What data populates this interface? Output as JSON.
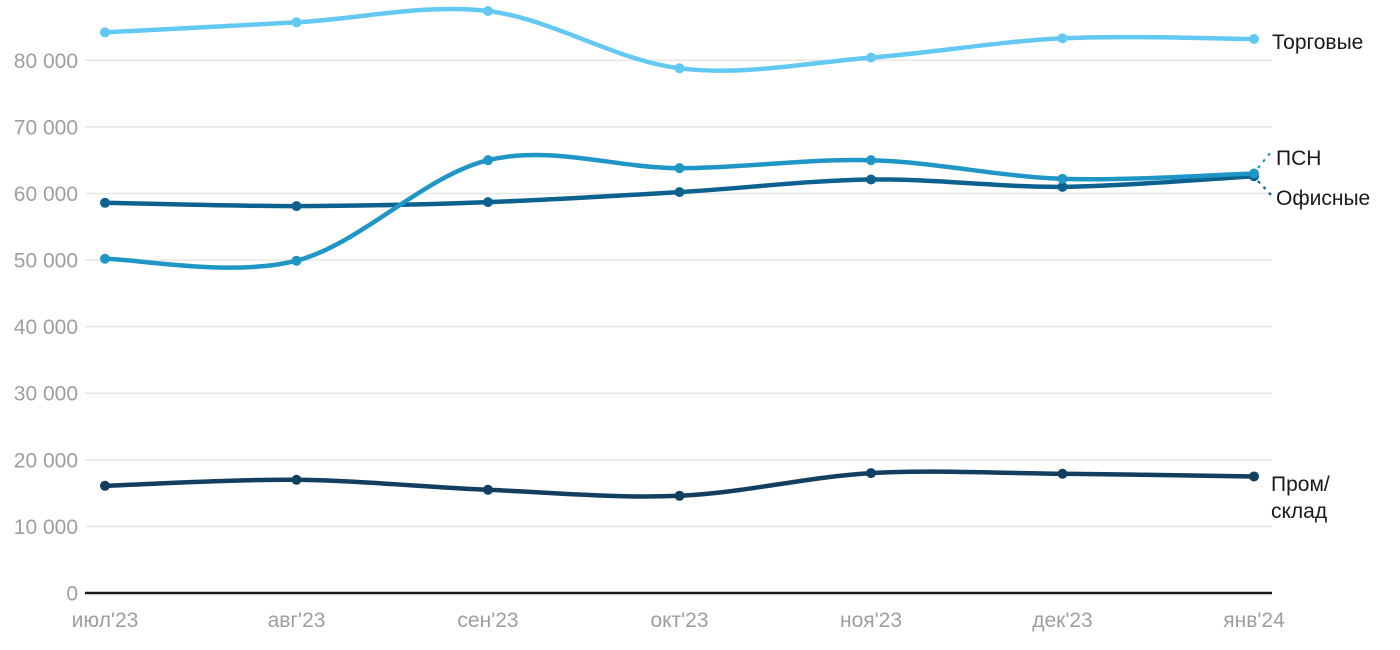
{
  "chart_data": {
    "type": "line",
    "title": "",
    "xlabel": "",
    "ylabel": "",
    "grid": "horizontal-only",
    "legend_position": "labels-at-right-edge-of-lines",
    "x_categories": [
      "июл'23",
      "авг'23",
      "сен'23",
      "окт'23",
      "ноя'23",
      "дек'23",
      "янв'24"
    ],
    "y_ticks": [
      0,
      10000,
      20000,
      30000,
      40000,
      50000,
      60000,
      70000,
      80000
    ],
    "y_tick_labels": [
      "0",
      "10 000",
      "20 000",
      "30 000",
      "40 000",
      "50 000",
      "60 000",
      "70 000",
      "80 000"
    ],
    "ylim": [
      0,
      89000
    ],
    "series": [
      {
        "name": "Торговые",
        "label_lines": [
          "Торговые"
        ],
        "color": "#63C9F2",
        "values": [
          84200,
          85700,
          87400,
          78800,
          80400,
          83300,
          83200
        ]
      },
      {
        "name": "ПСН",
        "label_lines": [
          "ПСН"
        ],
        "color": "#1F96C6",
        "values": [
          50200,
          49900,
          65000,
          63800,
          65000,
          62200,
          63000
        ]
      },
      {
        "name": "Офисные",
        "label_lines": [
          "Офисные"
        ],
        "color": "#0D618F",
        "values": [
          58600,
          58100,
          58700,
          60200,
          62100,
          61000,
          62600
        ]
      },
      {
        "name": "Пром/склад",
        "label_lines": [
          "Пром/",
          "склад"
        ],
        "color": "#123F5F",
        "values": [
          16100,
          17000,
          15500,
          14600,
          18000,
          17900,
          17500
        ]
      }
    ],
    "colors": {
      "gridline": "#e6e6e6",
      "axis_line": "#1a1a1a",
      "tick_text": "#9e9e9e",
      "label_text": "#1a1a1a",
      "background": "#ffffff"
    }
  }
}
